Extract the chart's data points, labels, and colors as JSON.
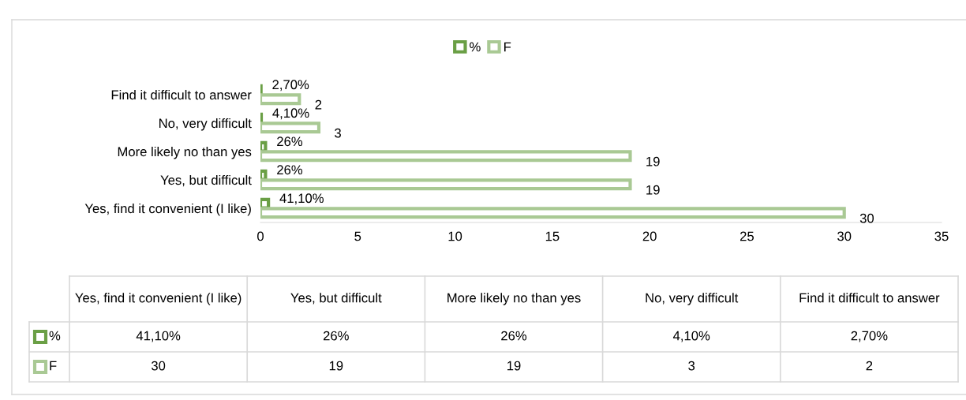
{
  "chart_data": {
    "type": "bar",
    "orientation": "horizontal",
    "categories": [
      "Find it difficult to answer",
      "No, very difficult",
      "More likely no than yes",
      "Yes, but difficult",
      "Yes, find it convenient (I like)"
    ],
    "series": [
      {
        "name": "%",
        "color": "#6a9f45",
        "values": [
          0.027,
          0.041,
          0.26,
          0.26,
          0.411
        ],
        "value_labels": [
          "2,70%",
          "4,10%",
          "26%",
          "26%",
          "41,10%"
        ]
      },
      {
        "name": "F",
        "color": "#a9c994",
        "values": [
          2,
          3,
          19,
          19,
          30
        ],
        "value_labels": [
          "2",
          "3",
          "19",
          "19",
          "30"
        ]
      }
    ],
    "xlim": [
      0,
      35
    ],
    "xticks": [
      0,
      5,
      10,
      15,
      20,
      25,
      30,
      35
    ],
    "grid": false,
    "legend": "top"
  }
}
